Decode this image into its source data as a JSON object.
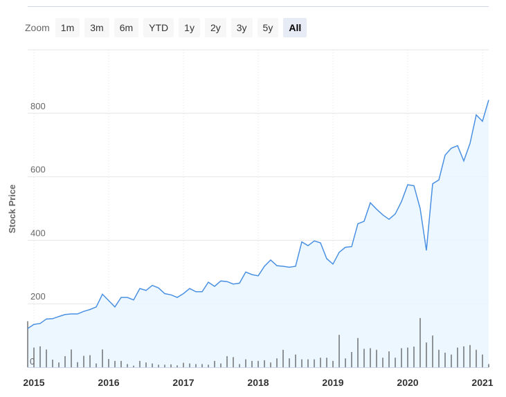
{
  "zoom": {
    "label": "Zoom",
    "buttons": [
      {
        "label": "1m",
        "active": false
      },
      {
        "label": "3m",
        "active": false
      },
      {
        "label": "6m",
        "active": false
      },
      {
        "label": "YTD",
        "active": false
      },
      {
        "label": "1y",
        "active": false
      },
      {
        "label": "2y",
        "active": false
      },
      {
        "label": "3y",
        "active": false
      },
      {
        "label": "5y",
        "active": false
      },
      {
        "label": "All",
        "active": true
      }
    ]
  },
  "chart_data": {
    "type": "area",
    "ylabel": "Stock Price",
    "xlabel": "",
    "ylim": [
      0,
      1000
    ],
    "yticks": [
      200,
      400,
      600,
      800
    ],
    "volume_zero_label": "0",
    "xticks": [
      "2015",
      "2016",
      "2017",
      "2018",
      "2019",
      "2020",
      "2021"
    ],
    "colors": {
      "line": "#4a90e2",
      "fill": "#eaf6ff",
      "volume": "#666666",
      "grid": "#e6e6e6"
    },
    "x": [
      "2014-12",
      "2015-01",
      "2015-02",
      "2015-03",
      "2015-04",
      "2015-05",
      "2015-06",
      "2015-07",
      "2015-08",
      "2015-09",
      "2015-10",
      "2015-11",
      "2015-12",
      "2016-01",
      "2016-02",
      "2016-03",
      "2016-04",
      "2016-05",
      "2016-06",
      "2016-07",
      "2016-08",
      "2016-09",
      "2016-10",
      "2016-11",
      "2016-12",
      "2017-01",
      "2017-02",
      "2017-03",
      "2017-04",
      "2017-05",
      "2017-06",
      "2017-07",
      "2017-08",
      "2017-09",
      "2017-10",
      "2017-11",
      "2017-12",
      "2018-01",
      "2018-02",
      "2018-03",
      "2018-04",
      "2018-05",
      "2018-06",
      "2018-07",
      "2018-08",
      "2018-09",
      "2018-10",
      "2018-11",
      "2018-12",
      "2019-01",
      "2019-02",
      "2019-03",
      "2019-04",
      "2019-05",
      "2019-06",
      "2019-07",
      "2019-08",
      "2019-09",
      "2019-10",
      "2019-11",
      "2019-12",
      "2020-01",
      "2020-02",
      "2020-03",
      "2020-04",
      "2020-05",
      "2020-06",
      "2020-07",
      "2020-08",
      "2020-09",
      "2020-10",
      "2020-11",
      "2020-12",
      "2021-01",
      "2021-02"
    ],
    "series": [
      {
        "values": [
          122,
          135,
          138,
          152,
          153,
          160,
          166,
          168,
          168,
          176,
          182,
          190,
          230,
          210,
          190,
          220,
          220,
          212,
          248,
          242,
          258,
          250,
          232,
          228,
          220,
          232,
          248,
          238,
          238,
          268,
          255,
          272,
          270,
          262,
          265,
          300,
          292,
          288,
          318,
          338,
          320,
          318,
          315,
          318,
          395,
          383,
          398,
          392,
          342,
          325,
          362,
          378,
          380,
          452,
          460,
          518,
          498,
          480,
          466,
          483,
          522,
          575,
          572,
          500,
          368,
          578,
          590,
          668,
          690,
          698,
          650,
          705,
          795,
          775,
          842
        ]
      },
      {
        "values": [
          145,
          62,
          66,
          56,
          24,
          15,
          35,
          56,
          16,
          36,
          38,
          12,
          56,
          26,
          20,
          20,
          10,
          5,
          20,
          15,
          12,
          8,
          8,
          9,
          6,
          14,
          12,
          10,
          10,
          8,
          20,
          12,
          35,
          32,
          10,
          25,
          20,
          20,
          22,
          15,
          28,
          55,
          28,
          40,
          25,
          25,
          25,
          30,
          30,
          20,
          102,
          28,
          48,
          92,
          58,
          60,
          55,
          30,
          50,
          30,
          60,
          62,
          65,
          155,
          78,
          100,
          55,
          46,
          40,
          62,
          66,
          70,
          55,
          40,
          10
        ]
      }
    ]
  }
}
